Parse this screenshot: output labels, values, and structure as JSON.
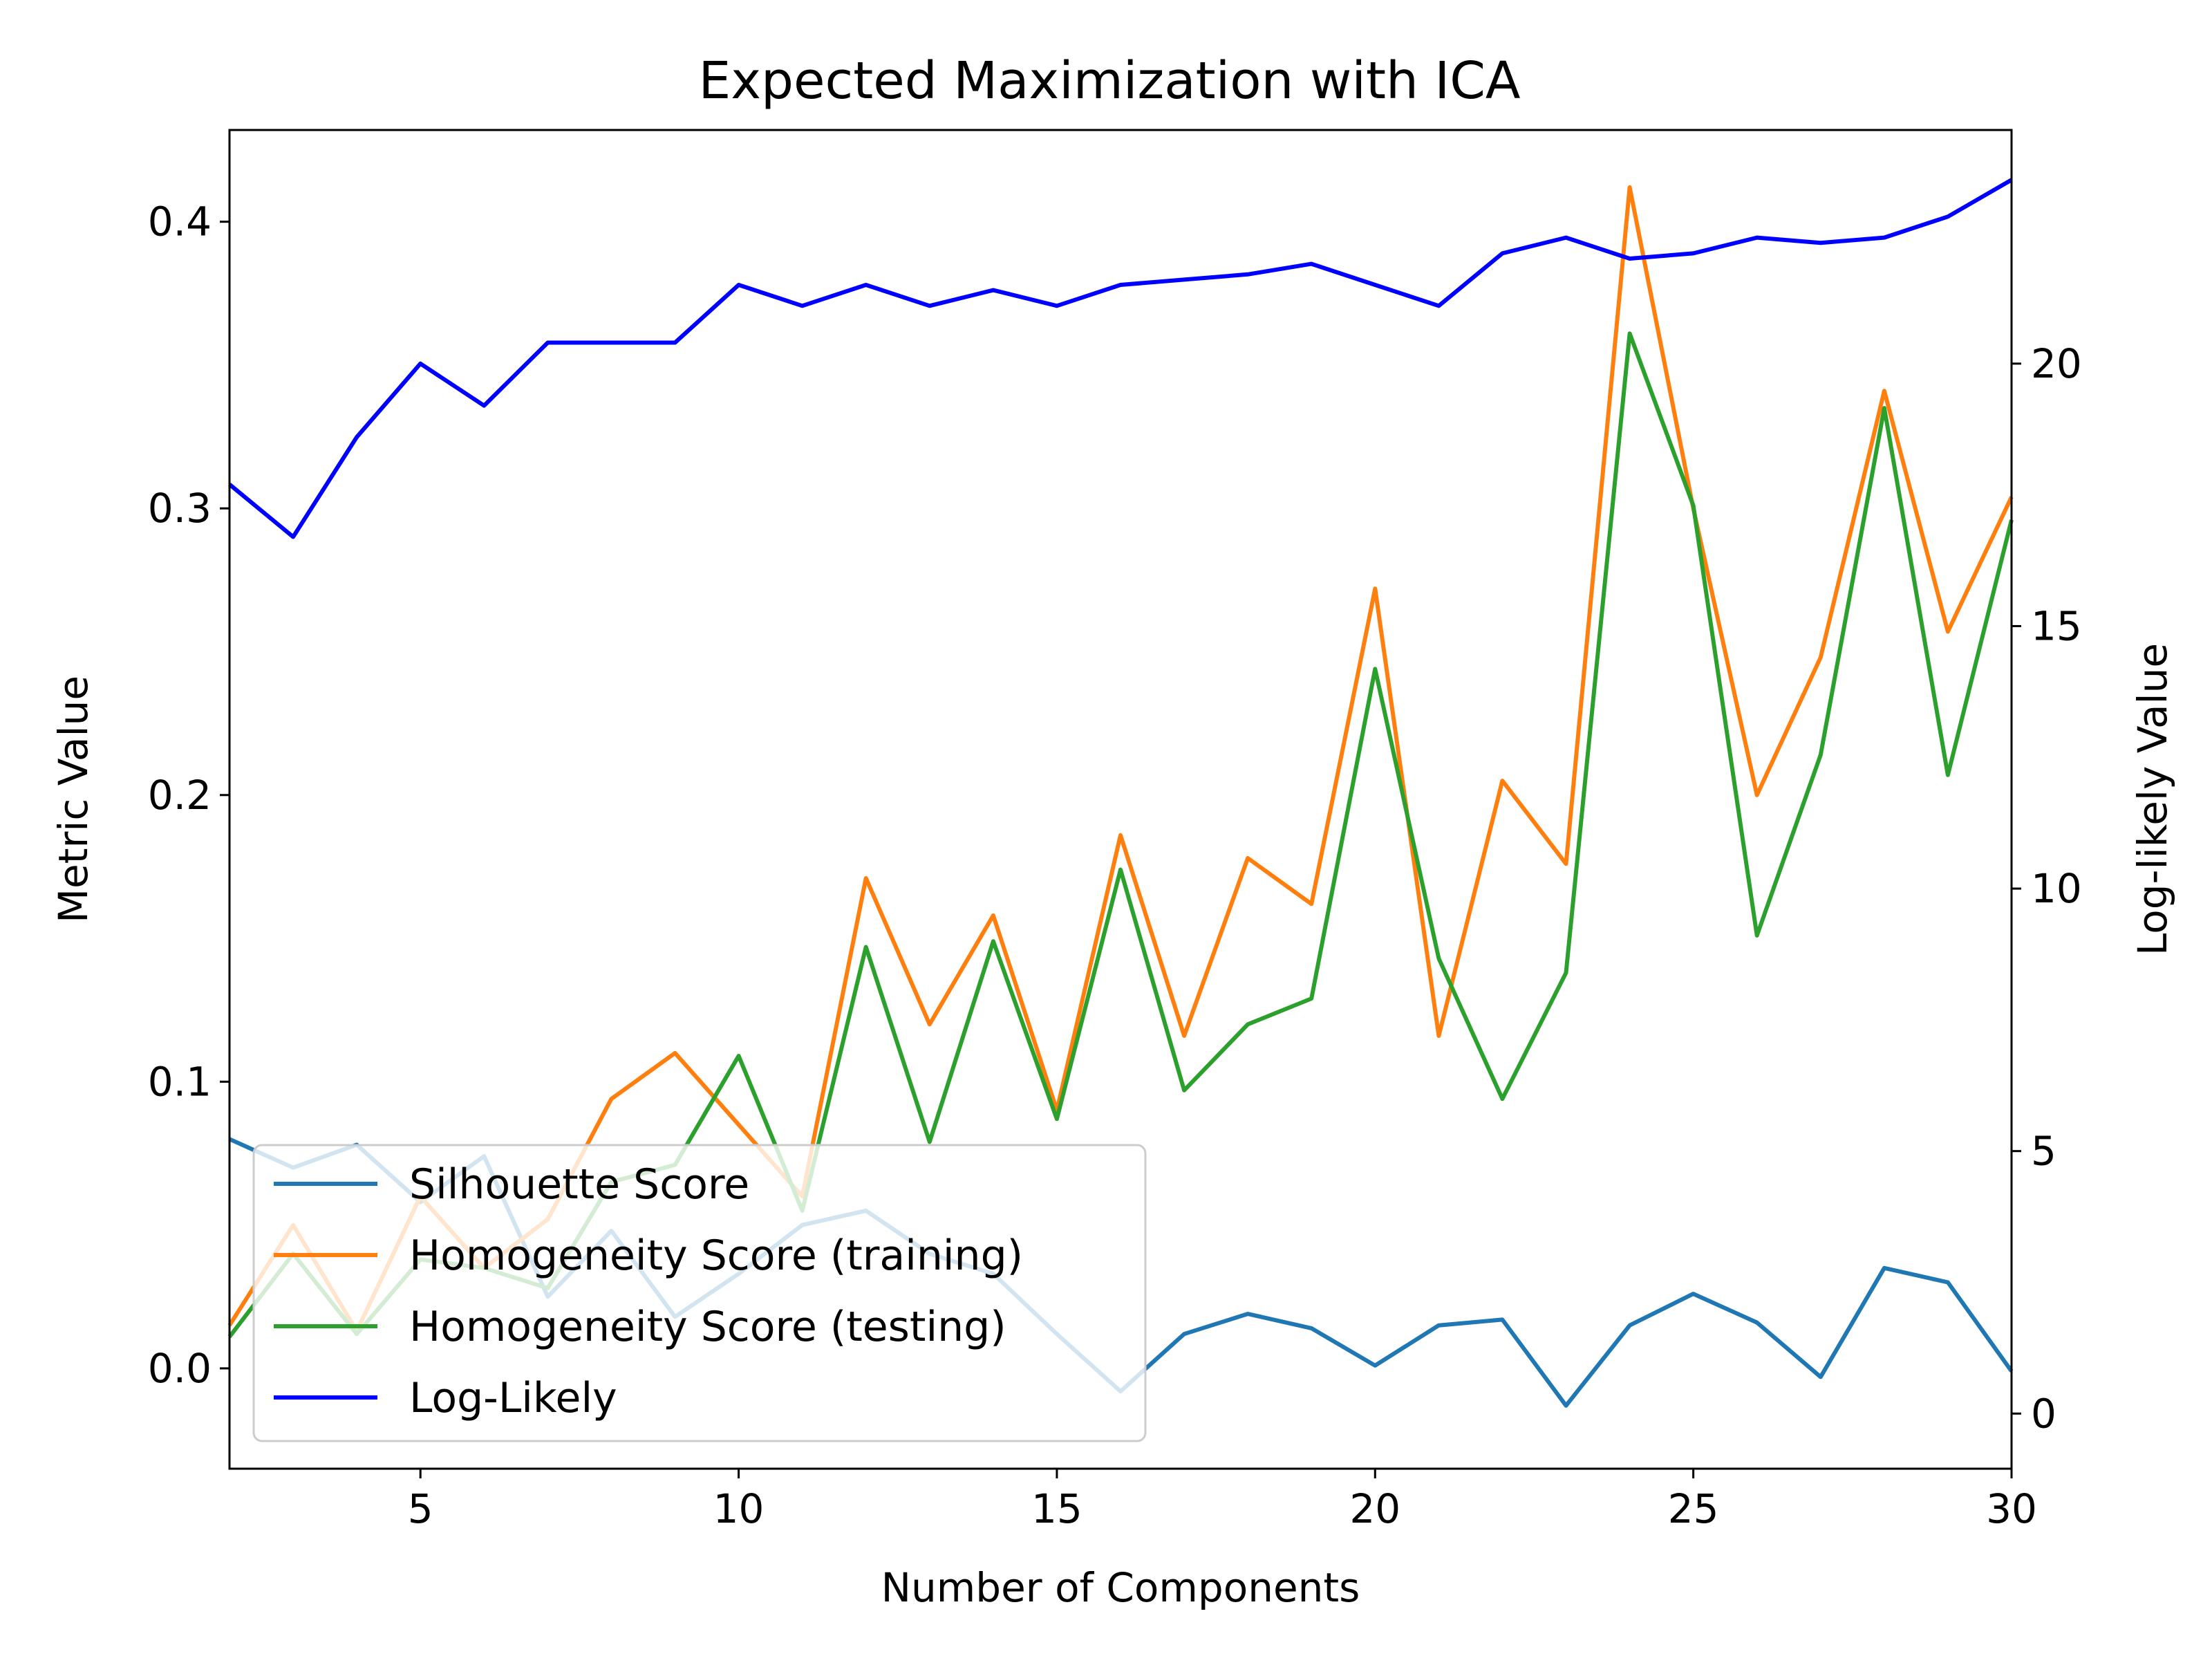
{
  "chart_data": {
    "type": "line",
    "title": "Expected Maximization with ICA",
    "xlabel": "Number of Components",
    "ylabel": "Metric Value",
    "y2label": "Log-likely Value",
    "x": [
      2,
      3,
      4,
      5,
      6,
      7,
      8,
      9,
      10,
      11,
      12,
      13,
      14,
      15,
      16,
      17,
      18,
      19,
      20,
      21,
      22,
      23,
      24,
      25,
      26,
      27,
      28,
      29,
      30
    ],
    "xlim": [
      2,
      30
    ],
    "ylim": [
      -0.035,
      0.432
    ],
    "y2lim": [
      -1.05,
      24.45
    ],
    "x_ticks": [
      5,
      10,
      15,
      20,
      25,
      30
    ],
    "y_ticks": [
      0.0,
      0.1,
      0.2,
      0.3,
      0.4
    ],
    "y2_ticks": [
      0,
      5,
      10,
      15,
      20
    ],
    "grid": false,
    "legend_position": "lower-left",
    "series": [
      {
        "name": "Silhouette Score",
        "axis": "left",
        "color": "#1f77b4",
        "values": [
          0.08,
          0.07,
          0.078,
          0.058,
          0.074,
          0.025,
          0.048,
          0.018,
          0.033,
          0.05,
          0.055,
          0.04,
          0.033,
          0.012,
          -0.008,
          0.012,
          0.019,
          0.014,
          0.001,
          0.015,
          0.017,
          -0.013,
          0.015,
          0.026,
          0.016,
          -0.003,
          0.035,
          0.03,
          -0.001
        ]
      },
      {
        "name": "Homogeneity Score (training)",
        "axis": "left",
        "color": "#ff7f0e",
        "values": [
          0.015,
          0.05,
          0.013,
          0.06,
          0.035,
          0.052,
          0.094,
          0.11,
          0.085,
          0.06,
          0.171,
          0.12,
          0.158,
          0.09,
          0.186,
          0.116,
          0.178,
          0.162,
          0.272,
          0.116,
          0.205,
          0.176,
          0.412,
          0.3,
          0.2,
          0.248,
          0.341,
          0.257,
          0.304
        ]
      },
      {
        "name": "Homogeneity Score (testing)",
        "axis": "left",
        "color": "#2ca02c",
        "values": [
          0.011,
          0.04,
          0.012,
          0.038,
          0.035,
          0.028,
          0.065,
          0.071,
          0.109,
          0.055,
          0.147,
          0.079,
          0.149,
          0.087,
          0.174,
          0.097,
          0.12,
          0.129,
          0.244,
          0.143,
          0.094,
          0.138,
          0.361,
          0.301,
          0.151,
          0.214,
          0.335,
          0.207,
          0.296
        ]
      },
      {
        "name": "Log-Likely",
        "axis": "right",
        "color": "#0000ff",
        "values": [
          17.7,
          16.7,
          18.6,
          20.0,
          19.2,
          20.4,
          20.4,
          20.4,
          21.5,
          21.1,
          21.5,
          21.1,
          21.4,
          21.1,
          21.5,
          21.6,
          21.7,
          21.9,
          21.5,
          21.1,
          22.1,
          22.4,
          22.0,
          22.1,
          22.4,
          22.3,
          22.4,
          22.8,
          23.5
        ]
      }
    ]
  }
}
